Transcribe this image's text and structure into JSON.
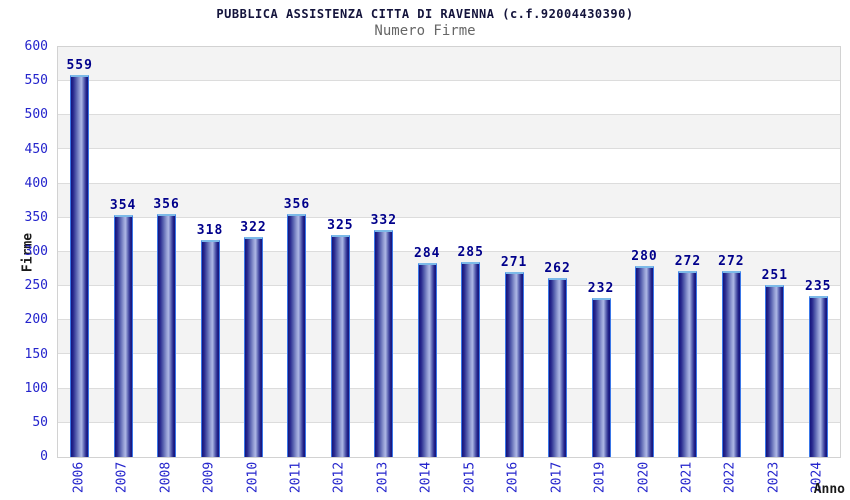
{
  "header": {
    "title": "PUBBLICA ASSISTENZA CITTA DI RAVENNA (c.f.92004430390)",
    "subtitle": "Numero Firme"
  },
  "chart_data": {
    "type": "bar",
    "title": "PUBBLICA ASSISTENZA CITTA DI RAVENNA (c.f.92004430390)",
    "subtitle": "Numero Firme",
    "xlabel": "Anno",
    "ylabel": "Firme",
    "categories": [
      "2006",
      "2007",
      "2008",
      "2009",
      "2010",
      "2011",
      "2012",
      "2013",
      "2014",
      "2015",
      "2016",
      "2017",
      "2019",
      "2020",
      "2021",
      "2022",
      "2023",
      "2024"
    ],
    "values": [
      559,
      354,
      356,
      318,
      322,
      356,
      325,
      332,
      284,
      285,
      271,
      262,
      232,
      280,
      272,
      272,
      251,
      235
    ],
    "ylim": [
      0,
      600
    ],
    "ytick_step": 50,
    "yticks": [
      600,
      550,
      500,
      450,
      400,
      350,
      300,
      250,
      200,
      150,
      100,
      50,
      0
    ],
    "grid": "horizontal-bands-alternating",
    "legend": "none",
    "note_missing_year": "2018 has no bar/label in the chart"
  },
  "colors": {
    "title": "#14143c",
    "subtitle": "#666666",
    "axis_tick_label": "#2424cc",
    "value_label": "#00008b",
    "band_gray": "#f3f3f3",
    "grid_line": "#dcdcdc",
    "plot_border": "#d2d2d2",
    "bar_dark": "#15157c",
    "bar_light": "#aeb7e6",
    "bar_side_border": "#3a77e8",
    "bar_top_cap": "#7cb9e8"
  }
}
